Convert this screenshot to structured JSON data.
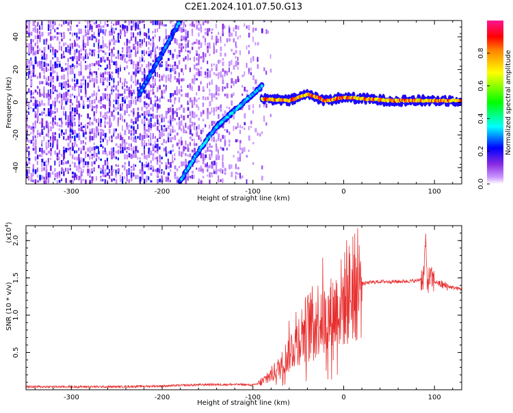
{
  "title": "C2E1.2024.101.07.50.G13",
  "chart_data": [
    {
      "type": "heatmap",
      "title": "C2E1.2024.101.07.50.G13",
      "xlabel": "Height of straight line (km)",
      "ylabel": "Frequency (Hz)",
      "xlim": [
        -350,
        130
      ],
      "ylim": [
        -50,
        50
      ],
      "x_ticks": [
        -300,
        -200,
        -100,
        0,
        100
      ],
      "y_ticks": [
        -40,
        -20,
        0,
        20,
        40
      ],
      "grid": false,
      "colorbar": {
        "label": "Normalized spectral amplitude",
        "range": [
          0,
          1
        ],
        "ticks": [
          0.0,
          0.2,
          0.4,
          0.6,
          0.8
        ],
        "colors": [
          "#ffffff",
          "#8a2be2",
          "#0000ff",
          "#00ffff",
          "#00ff00",
          "#ffff00",
          "#ff0000",
          "#ff1493"
        ]
      },
      "ridges": [
        {
          "x": [
            -180,
            -160,
            -140,
            -120,
            -100,
            -90
          ],
          "y": [
            -48,
            -30,
            -15,
            -5,
            5,
            10
          ],
          "amplitude": 0.35
        },
        {
          "x": [
            -225,
            -210,
            -195,
            -180
          ],
          "y": [
            5,
            20,
            35,
            50
          ],
          "amplitude": 0.3
        },
        {
          "x": [
            -90,
            -60,
            -40,
            -20,
            0,
            50,
            130
          ],
          "y": [
            2,
            1,
            5,
            1,
            3,
            1,
            1
          ],
          "amplitude": 0.85
        }
      ]
    },
    {
      "type": "line",
      "xlabel": "Height of straight line (km)",
      "ylabel": "SNR (10 * v/v)",
      "y_multiplier": "(x10",
      "y_multiplier_exp": "4",
      "y_multiplier_close": ")",
      "xlim": [
        -350,
        130
      ],
      "ylim": [
        0,
        2.2
      ],
      "x_ticks": [
        -300,
        -200,
        -100,
        0,
        100
      ],
      "y_ticks": [
        0.5,
        1.0,
        1.5,
        2.0
      ],
      "grid": false,
      "color": "#e83030",
      "series": [
        {
          "x": [
            -350,
            -300,
            -250,
            -200,
            -150,
            -110,
            -100,
            -90,
            -80,
            -70,
            -60,
            -50,
            -40,
            -30,
            -25,
            -20,
            -10,
            0,
            10,
            20,
            30,
            40,
            60,
            80,
            88,
            90,
            92,
            95,
            100,
            110,
            120,
            130
          ],
          "y": [
            0.04,
            0.04,
            0.04,
            0.05,
            0.07,
            0.07,
            0.06,
            0.1,
            0.2,
            0.3,
            0.5,
            0.7,
            0.85,
            0.95,
            1.0,
            0.9,
            1.05,
            1.2,
            1.35,
            1.42,
            1.44,
            1.45,
            1.45,
            1.46,
            1.5,
            2.0,
            1.45,
            1.5,
            1.45,
            1.4,
            1.37,
            1.35
          ]
        }
      ]
    }
  ]
}
